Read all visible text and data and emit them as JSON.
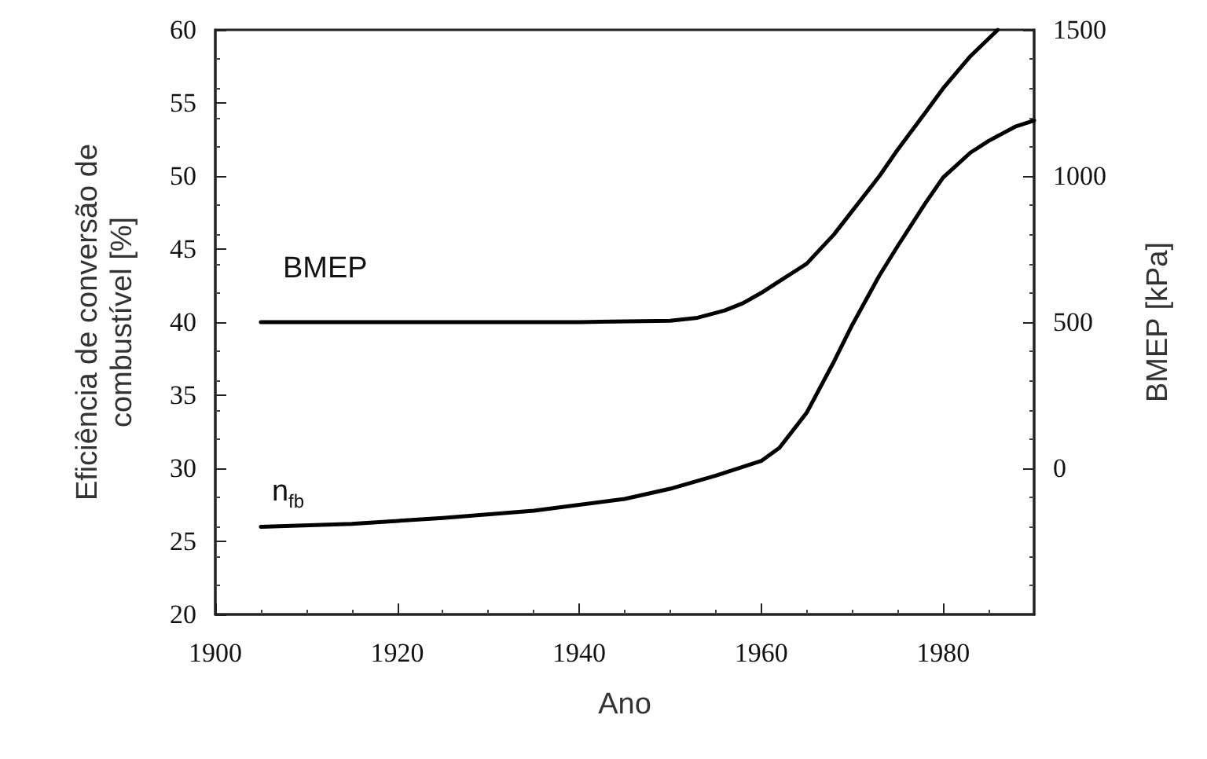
{
  "chart_data": {
    "type": "line",
    "xlabel": "Ano",
    "ylabel": "Eficiência de conversão de\ncombustível [%]",
    "y2label": "BMEP [kPa]",
    "xlim": [
      1900,
      1990
    ],
    "xticks": [
      1900,
      1920,
      1940,
      1960,
      1980
    ],
    "ylim": [
      20,
      60
    ],
    "yticks": [
      20,
      25,
      30,
      35,
      40,
      45,
      50,
      55,
      60
    ],
    "y2lim": [
      -500,
      1500
    ],
    "y2ticks": [
      0,
      500,
      1000,
      1500
    ],
    "grid": false,
    "marker": "none",
    "line_style": "solid",
    "series": [
      {
        "color": "#000000",
        "axis": "y2",
        "x": [
          1905,
          1920,
          1940,
          1950,
          1953,
          1956,
          1958,
          1960,
          1962,
          1965,
          1968,
          1970,
          1973,
          1975,
          1978,
          1980,
          1983,
          1986
        ],
        "values": [
          500,
          500,
          500,
          505,
          515,
          540,
          565,
          600,
          640,
          700,
          800,
          880,
          1000,
          1090,
          1215,
          1300,
          1410,
          1500
        ]
      },
      {
        "color": "#000000",
        "x": [
          1905,
          1915,
          1925,
          1935,
          1945,
          1950,
          1955,
          1958,
          1960,
          1962,
          1965,
          1968,
          1970,
          1973,
          1975,
          1978,
          1980,
          1983,
          1985,
          1988,
          1990
        ],
        "values": [
          26.0,
          26.2,
          26.6,
          27.1,
          27.9,
          28.6,
          29.5,
          30.1,
          30.5,
          31.4,
          33.8,
          37.3,
          39.8,
          43.2,
          45.2,
          48.1,
          49.9,
          51.6,
          52.4,
          53.4,
          53.8
        ]
      }
    ],
    "annotations": [
      "BMEP",
      "n$_{fb}$"
    ]
  }
}
